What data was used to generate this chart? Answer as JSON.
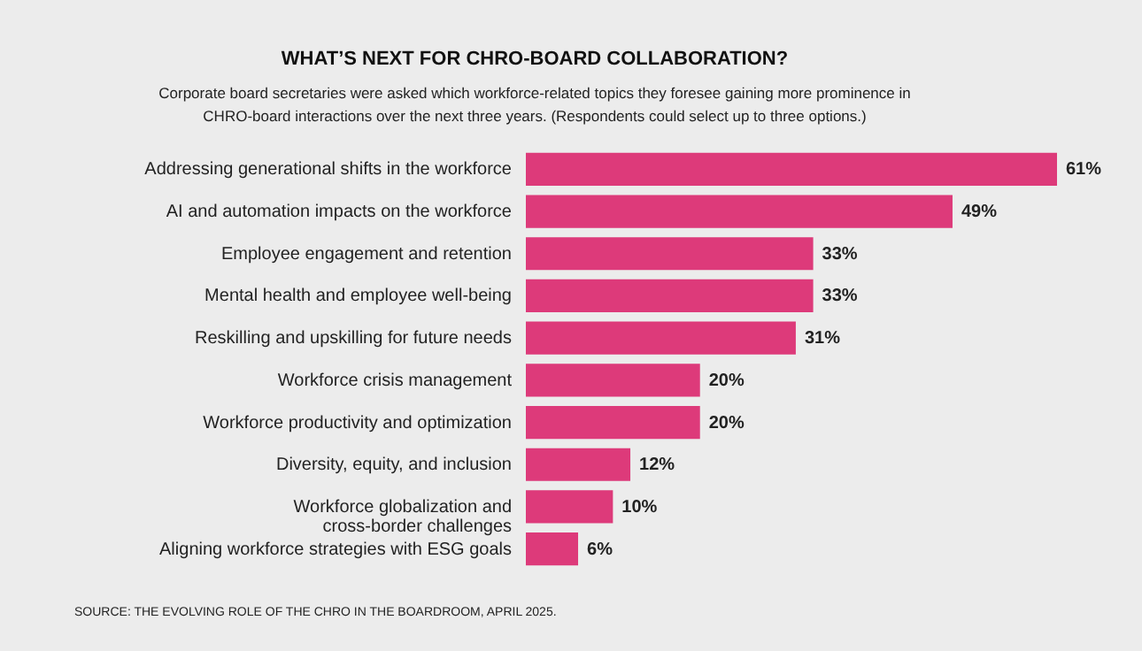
{
  "chart_data": {
    "type": "bar",
    "orientation": "horizontal",
    "title": "WHAT’S NEXT FOR CHRO-BOARD COLLABORATION?",
    "subtitle": "Corporate board secretaries were asked which workforce-related topics they foresee gaining more prominence in CHRO-board interactions over the next three years. (Respondents could select up to three options.)",
    "categories": [
      "Addressing generational shifts in the workforce",
      "AI and automation impacts on the workforce",
      "Employee engagement and retention",
      "Mental health and employee well-being",
      "Reskilling and upskilling for future needs",
      "Workforce crisis management",
      "Workforce productivity and optimization",
      "Diversity, equity, and inclusion",
      "Workforce globalization and cross-border challenges",
      "Aligning workforce strategies with ESG goals"
    ],
    "values": [
      61,
      49,
      33,
      33,
      31,
      20,
      20,
      12,
      10,
      6
    ],
    "value_labels": [
      "61%",
      "49%",
      "33%",
      "33%",
      "31%",
      "20%",
      "20%",
      "12%",
      "10%",
      "6%"
    ],
    "color": "#dd3a7a",
    "annotations": [
      "SOURCE: THE EVOLVING ROLE OF THE CHRO IN THE BOARDROOM, APRIL 2025."
    ]
  }
}
